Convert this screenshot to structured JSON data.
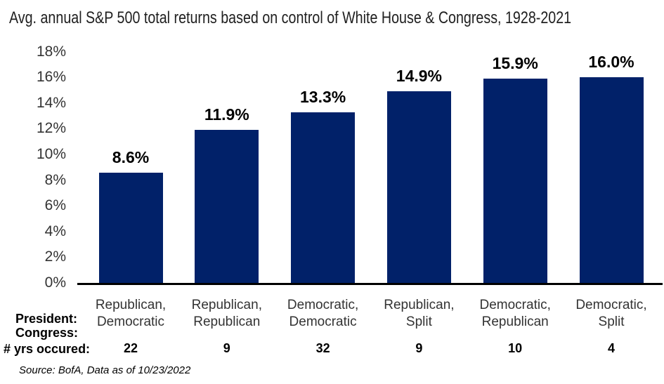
{
  "row_labels": {
    "president": "President:",
    "congress": "Congress:",
    "yrs": "# yrs occured:"
  },
  "source": "Source: BofA, Data as of 10/23/2022",
  "chart_data": {
    "type": "bar",
    "title": "Avg. annual S&P 500 total returns based on control of White House & Congress, 1928-2021",
    "categories": [
      "Republican, Democratic",
      "Republican, Republican",
      "Democratic, Democratic",
      "Republican, Split",
      "Democratic, Republican",
      "Democratic, Split"
    ],
    "values": [
      8.6,
      11.9,
      13.3,
      14.9,
      15.9,
      16.0
    ],
    "value_labels": [
      "8.6%",
      "11.9%",
      "13.3%",
      "14.9%",
      "15.9%",
      "16.0%"
    ],
    "years_occurred": [
      "22",
      "9",
      "32",
      "9",
      "10",
      "4"
    ],
    "ylabel": "",
    "xlabel": "",
    "ylim": [
      0,
      18
    ],
    "y_ticks": [
      "0%",
      "2%",
      "4%",
      "6%",
      "8%",
      "10%",
      "12%",
      "14%",
      "16%",
      "18%"
    ],
    "grid": false,
    "legend": false,
    "bar_color": "#012169",
    "axis_color": "#000000"
  }
}
